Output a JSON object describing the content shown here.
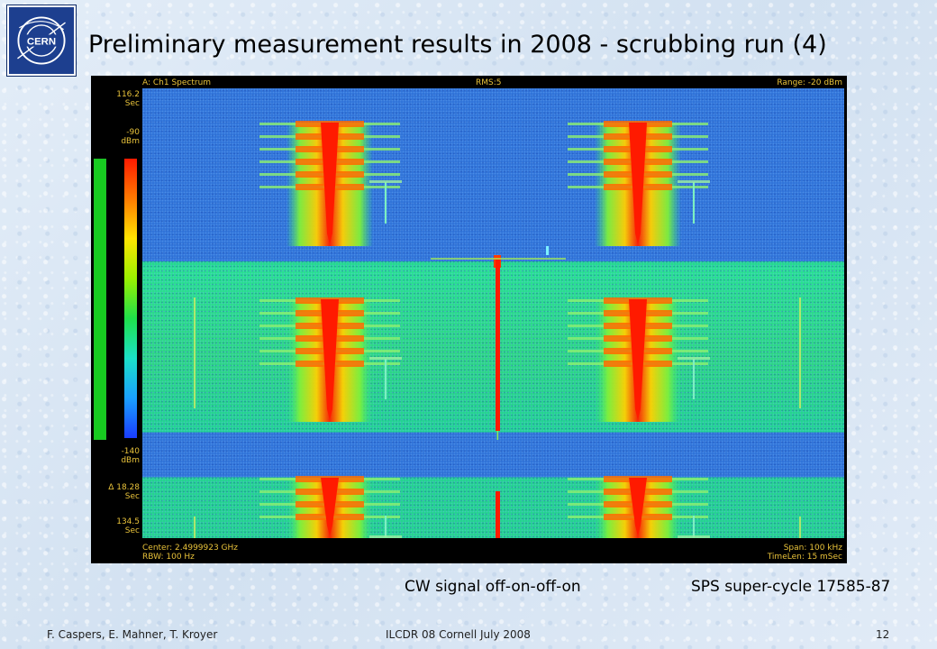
{
  "logo": {
    "text": "CERN"
  },
  "title": "Preliminary measurement results in 2008 - scrubbing run (4)",
  "analyzer": {
    "trace": "A: Ch1 Spectrum",
    "rms": "RMS:5",
    "range": "Range: -20 dBm",
    "time_top_value": "116.2",
    "time_top_unit": "Sec",
    "scale_top_value": "-90",
    "scale_top_unit": "dBm",
    "scale_bottom_value": "-140",
    "scale_bottom_unit": "dBm",
    "delta_value": "Δ 18.28",
    "delta_unit": "Sec",
    "time_bottom_value": "134.5",
    "time_bottom_unit": "Sec",
    "center": "Center: 2.4999923 GHz",
    "rbw": "RBW: 100  Hz",
    "span": "Span: 100 kHz",
    "timelen": "TimeLen: 15 mSec",
    "colors": {
      "high": "#ff1a00",
      "mid": "#ffe400",
      "low": "#1a3cff",
      "noise_floor": "#2f72d8",
      "carrier_band": "#22d48c"
    }
  },
  "captions": {
    "left": "CW signal off-on-off-on",
    "right": "SPS super-cycle 17585-87"
  },
  "footer": {
    "authors": "F. Caspers, E. Mahner, T. Kroyer",
    "event": "ILCDR 08 Cornell July 2008",
    "page": "12"
  }
}
